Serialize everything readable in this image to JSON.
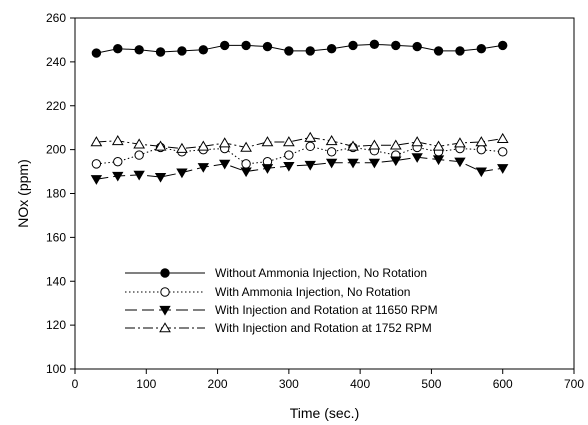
{
  "chart_data": {
    "type": "line",
    "xlabel": "Time (sec.)",
    "ylabel": "NOx (ppm)",
    "xlim": [
      0,
      700
    ],
    "ylim": [
      100,
      260
    ],
    "xticks": [
      0,
      100,
      200,
      300,
      400,
      500,
      600,
      700
    ],
    "yticks": [
      100,
      120,
      140,
      160,
      180,
      200,
      220,
      240,
      260
    ],
    "grid": false,
    "legend_position": "bottom-center",
    "x": [
      30,
      60,
      90,
      120,
      150,
      180,
      210,
      240,
      270,
      300,
      330,
      360,
      390,
      420,
      450,
      480,
      510,
      540,
      570,
      600
    ],
    "series": [
      {
        "name": "Without Ammonia Injection, No Rotation",
        "marker": "filled-circle",
        "dash": "solid",
        "values": [
          244,
          246,
          245.5,
          244.5,
          245,
          245.5,
          247.5,
          247.5,
          247,
          245,
          245,
          246,
          247.5,
          248,
          247.5,
          247,
          245,
          245,
          246,
          247.5
        ]
      },
      {
        "name": "With Ammonia Injection, No Rotation",
        "marker": "open-circle",
        "dash": "dotted",
        "values": [
          193.5,
          194.5,
          197.5,
          201,
          199,
          200,
          200.5,
          193.5,
          194.5,
          197.5,
          201.5,
          199,
          201,
          199.5,
          197.5,
          201,
          199,
          200.5,
          200,
          199
        ]
      },
      {
        "name": "With Injection and Rotation at 11650 RPM",
        "marker": "filled-triangle-down",
        "dash": "long-dash",
        "values": [
          186.5,
          188,
          188.5,
          187.5,
          189.5,
          192,
          193.5,
          190,
          191.5,
          192.5,
          193,
          194,
          194,
          194,
          195,
          196.5,
          195.5,
          194.5,
          190,
          191.5
        ]
      },
      {
        "name": "With Injection and Rotation at 1752 RPM",
        "marker": "open-triangle-up",
        "dash": "dash-dot",
        "values": [
          203.5,
          204,
          202.5,
          201.5,
          200.5,
          201.5,
          203,
          201,
          203.5,
          203.5,
          205.5,
          204,
          201.5,
          202,
          202,
          203.5,
          201.5,
          203,
          203.5,
          205
        ]
      }
    ]
  }
}
